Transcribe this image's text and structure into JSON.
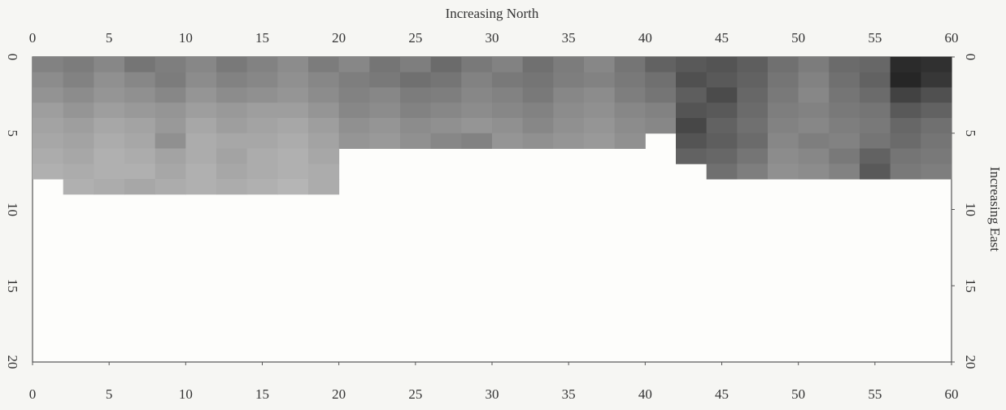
{
  "chart_data": {
    "type": "heatmap",
    "xlabel": "Increasing North",
    "ylabel": "Increasing East",
    "xlim": [
      0,
      60
    ],
    "ylim": [
      0,
      20
    ],
    "xticks": [
      0,
      5,
      10,
      15,
      20,
      25,
      30,
      35,
      40,
      45,
      50,
      55,
      60
    ],
    "yticks": [
      0,
      5,
      10,
      15,
      20
    ],
    "x": [
      1,
      3,
      5,
      7,
      9,
      11,
      13,
      15,
      17,
      19,
      21,
      23,
      25,
      27,
      29,
      31,
      33,
      35,
      37,
      39,
      41,
      43,
      45,
      47,
      49,
      51,
      53,
      55,
      57,
      59
    ],
    "y": [
      0.5,
      1.5,
      2.5,
      3.5,
      4.5,
      5.5,
      6.5,
      7.5,
      8.5
    ],
    "values": [
      [
        52,
        55,
        50,
        58,
        54,
        50,
        56,
        52,
        48,
        55,
        50,
        58,
        54,
        62,
        56,
        52,
        60,
        55,
        50,
        58,
        66,
        70,
        72,
        68,
        60,
        55,
        62,
        64,
        90,
        88
      ],
      [
        48,
        52,
        46,
        50,
        55,
        48,
        52,
        50,
        46,
        50,
        54,
        56,
        60,
        58,
        52,
        56,
        58,
        54,
        52,
        56,
        60,
        74,
        70,
        66,
        58,
        52,
        60,
        66,
        92,
        85
      ],
      [
        45,
        48,
        44,
        46,
        50,
        44,
        48,
        46,
        44,
        48,
        52,
        50,
        55,
        54,
        50,
        52,
        56,
        50,
        48,
        54,
        58,
        68,
        76,
        64,
        56,
        50,
        58,
        62,
        80,
        74
      ],
      [
        40,
        44,
        40,
        42,
        44,
        40,
        42,
        40,
        40,
        44,
        50,
        48,
        52,
        50,
        48,
        50,
        52,
        48,
        46,
        50,
        52,
        72,
        70,
        62,
        54,
        52,
        56,
        58,
        70,
        66
      ],
      [
        38,
        40,
        36,
        38,
        42,
        36,
        40,
        38,
        36,
        40,
        46,
        44,
        48,
        46,
        44,
        46,
        50,
        46,
        44,
        48,
        50,
        78,
        66,
        60,
        52,
        50,
        54,
        56,
        64,
        60
      ],
      [
        36,
        38,
        34,
        36,
        46,
        34,
        36,
        36,
        34,
        38,
        44,
        42,
        46,
        50,
        52,
        44,
        46,
        44,
        42,
        46,
        null,
        72,
        68,
        62,
        50,
        54,
        52,
        58,
        62,
        58
      ],
      [
        34,
        36,
        32,
        34,
        38,
        34,
        38,
        34,
        32,
        36,
        null,
        null,
        null,
        null,
        null,
        null,
        null,
        null,
        null,
        null,
        null,
        66,
        64,
        58,
        48,
        50,
        56,
        66,
        58,
        56
      ],
      [
        32,
        34,
        32,
        32,
        36,
        32,
        36,
        34,
        32,
        34,
        null,
        null,
        null,
        null,
        null,
        null,
        null,
        null,
        null,
        null,
        null,
        null,
        60,
        54,
        46,
        48,
        52,
        70,
        56,
        54
      ],
      [
        null,
        32,
        34,
        36,
        34,
        32,
        34,
        32,
        30,
        34,
        null,
        null,
        null,
        null,
        null,
        null,
        null,
        null,
        null,
        null,
        null,
        null,
        null,
        null,
        null,
        null,
        null,
        null,
        null,
        null
      ]
    ]
  }
}
